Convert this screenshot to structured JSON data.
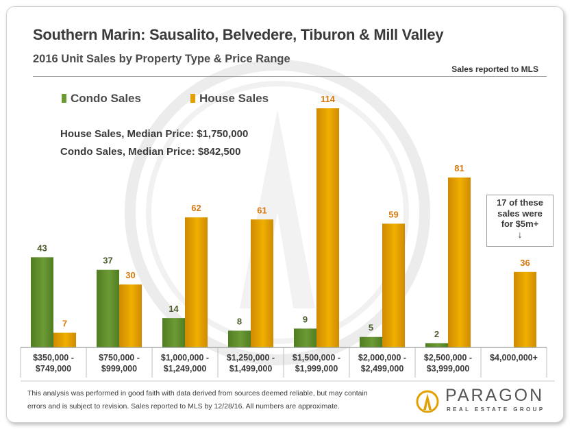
{
  "header": {
    "title": "Southern Marin: Sausalito, Belvedere, Tiburon & Mill Valley",
    "subtitle": "2016 Unit Sales by Property Type & Price Range",
    "source_note": "Sales reported to MLS"
  },
  "medians": {
    "house": "House Sales, Median Price:  $1,750,000",
    "condo": "Condo Sales, Median Price:  $842,500"
  },
  "annotation": {
    "lines": [
      "17 of these",
      "sales were",
      "for $5m+"
    ],
    "arrow": "↓"
  },
  "footnote": {
    "line1": "This analysis was performed in good faith with data derived from sources deemed reliable, but may contain",
    "line2": "errors and is subject to revision.  Sales reported to MLS by 12/28/16.  All numbers are approximate."
  },
  "brand": {
    "name": "PARAGON",
    "sub": "REAL ESTATE GROUP"
  },
  "colors": {
    "condo": "#6d9a35",
    "house": "#e2a000",
    "condo_label": "#4a5a2a",
    "house_label": "#d8780c"
  },
  "chart_data": {
    "type": "bar",
    "categories": [
      [
        "$350,000 -",
        "$749,000"
      ],
      [
        "$750,000 -",
        "$999,000"
      ],
      [
        "$1,000,000 -",
        "$1,249,000"
      ],
      [
        "$1,250,000 -",
        "$1,499,000"
      ],
      [
        "$1,500,000 -",
        "$1,999,000"
      ],
      [
        "$2,000,000 -",
        "$2,499,000"
      ],
      [
        "$2,500,000 -",
        "$3,999,000"
      ],
      [
        "$4,000,000+"
      ]
    ],
    "series": [
      {
        "name": "Condo Sales",
        "values": [
          43,
          37,
          14,
          8,
          9,
          5,
          2,
          null
        ]
      },
      {
        "name": "House Sales",
        "values": [
          7,
          30,
          62,
          61,
          114,
          59,
          81,
          36
        ]
      }
    ],
    "title": "2016 Unit Sales by Property Type & Price Range",
    "xlabel": "",
    "ylabel": "",
    "ylim": [
      0,
      120
    ],
    "grid": false,
    "legend": "top-left",
    "data_labels": true
  }
}
